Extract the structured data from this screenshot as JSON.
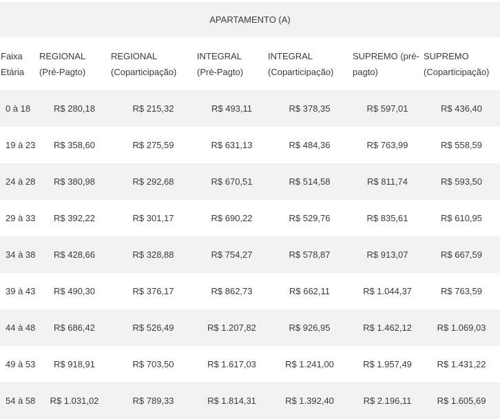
{
  "title": "APARTAMENTO (A)",
  "headers": [
    [
      "Faixa",
      "Etária"
    ],
    [
      "REGIONAL",
      "(Pré-Pagto)"
    ],
    [
      "REGIONAL",
      "(Coparticipação)"
    ],
    [
      "INTEGRAL",
      "(Pré-Pagto)"
    ],
    [
      "INTEGRAL",
      "(Coparticipação)"
    ],
    [
      "SUPREMO (pré-",
      "pagto)"
    ],
    [
      "SUPREMO",
      "(Coparticipação)"
    ]
  ],
  "rows": [
    [
      "0 à 18",
      "R$ 280,18",
      "R$ 215,32",
      "R$ 493,11",
      "R$ 378,35",
      "R$ 597,01",
      "R$ 436,40"
    ],
    [
      "19 à 23",
      "R$ 358,60",
      "R$ 275,59",
      "R$ 631,13",
      "R$ 484,36",
      "R$ 763,99",
      "R$ 558,59"
    ],
    [
      "24 à 28",
      "R$ 380,98",
      "R$ 292,68",
      "R$ 670,51",
      "R$ 514,58",
      "R$ 811,74",
      "R$ 593,50"
    ],
    [
      "29 à 33",
      "R$ 392,22",
      "R$ 301,17",
      "R$ 690,22",
      "R$ 529,76",
      "R$ 835,61",
      "R$ 610,95"
    ],
    [
      "34 à 38",
      "R$ 428,66",
      "R$ 328,88",
      "R$ 754,27",
      "R$ 578,87",
      "R$ 913,07",
      "R$ 667,59"
    ],
    [
      "39 à 43",
      "R$ 490,30",
      "R$ 376,17",
      "R$ 862,73",
      "R$ 662,11",
      "R$ 1.044,37",
      "R$ 763,59"
    ],
    [
      "44 à 48",
      "R$ 686,42",
      "R$ 526,49",
      "R$ 1.207,82",
      "R$ 926,95",
      "R$ 1.462,12",
      "R$ 1.069,03"
    ],
    [
      "49 à 53",
      "R$ 918,91",
      "R$ 703,50",
      "R$ 1.617,03",
      "R$ 1.241,00",
      "R$ 1.957,49",
      "R$ 1.431,22"
    ],
    [
      "54 à 58",
      "R$ 1.031,02",
      "R$ 789,33",
      "R$ 1.814,31",
      "R$ 1.392,40",
      "R$ 2.196,11",
      "R$ 1.605,69"
    ]
  ],
  "colors": {
    "stripe": "#f2f2f2",
    "text": "#3a3a3a"
  }
}
